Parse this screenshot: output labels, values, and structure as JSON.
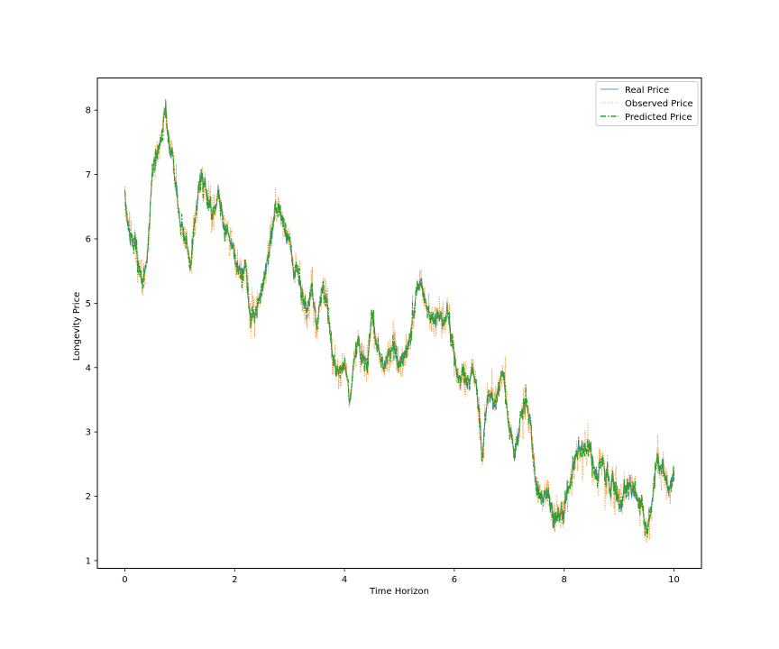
{
  "chart_data": {
    "type": "line",
    "xlabel": "Time Horizon",
    "ylabel": "Longevity Price",
    "xlim": [
      -0.5,
      10.5
    ],
    "ylim": [
      0.88,
      8.5
    ],
    "xticks": [
      0,
      2,
      4,
      6,
      8,
      10
    ],
    "yticks": [
      1,
      2,
      3,
      4,
      5,
      6,
      7,
      8
    ],
    "legend_position": "top-right",
    "grid": false,
    "colors": {
      "real": "#1f77b4",
      "observed": "#ff7f0e",
      "predicted": "#2ca02c"
    },
    "series": [
      {
        "name": "Real Price",
        "key": "real",
        "style": "solid"
      },
      {
        "name": "Observed Price",
        "key": "observed",
        "style": "dotted"
      },
      {
        "name": "Predicted Price",
        "key": "predicted",
        "style": "dashdot"
      }
    ],
    "noise": {
      "real": 0.035,
      "observed": 0.14,
      "predicted": 0.06
    },
    "path_anchors": {
      "x": [
        0,
        0.05,
        0.1,
        0.2,
        0.3,
        0.4,
        0.5,
        0.6,
        0.7,
        0.75,
        0.8,
        0.9,
        1.0,
        1.1,
        1.2,
        1.3,
        1.4,
        1.5,
        1.6,
        1.7,
        1.8,
        1.9,
        2.0,
        2.1,
        2.2,
        2.3,
        2.4,
        2.5,
        2.6,
        2.7,
        2.8,
        2.9,
        3.0,
        3.1,
        3.2,
        3.3,
        3.4,
        3.5,
        3.6,
        3.7,
        3.8,
        3.9,
        4.0,
        4.1,
        4.2,
        4.3,
        4.4,
        4.5,
        4.6,
        4.7,
        4.8,
        4.9,
        5.0,
        5.1,
        5.2,
        5.3,
        5.4,
        5.5,
        5.6,
        5.7,
        5.8,
        5.9,
        6.0,
        6.1,
        6.2,
        6.3,
        6.4,
        6.5,
        6.6,
        6.7,
        6.8,
        6.9,
        7.0,
        7.1,
        7.2,
        7.3,
        7.4,
        7.5,
        7.6,
        7.7,
        7.8,
        7.9,
        8.0,
        8.1,
        8.2,
        8.3,
        8.4,
        8.5,
        8.6,
        8.7,
        8.8,
        8.9,
        9.0,
        9.1,
        9.2,
        9.3,
        9.4,
        9.5,
        9.6,
        9.7,
        9.8,
        9.9,
        10.0
      ],
      "y": [
        6.7,
        6.4,
        6.0,
        5.9,
        5.3,
        5.6,
        7.0,
        7.3,
        7.8,
        8.0,
        7.5,
        7.0,
        6.3,
        6.0,
        5.7,
        6.5,
        7.0,
        6.6,
        6.3,
        6.8,
        6.3,
        6.0,
        5.8,
        5.5,
        5.6,
        4.7,
        4.9,
        5.3,
        5.8,
        6.1,
        6.6,
        6.2,
        5.9,
        5.5,
        5.3,
        5.0,
        5.3,
        4.6,
        5.3,
        4.8,
        4.2,
        4.0,
        4.0,
        3.6,
        4.3,
        4.3,
        3.9,
        4.7,
        4.2,
        4.1,
        4.3,
        4.4,
        4.2,
        4.3,
        4.6,
        5.1,
        5.2,
        4.8,
        4.7,
        5.0,
        4.7,
        4.8,
        4.3,
        3.9,
        3.7,
        4.0,
        3.8,
        2.6,
        3.5,
        3.4,
        3.6,
        3.9,
        3.0,
        2.8,
        3.2,
        3.5,
        3.0,
        2.1,
        2.0,
        2.1,
        1.6,
        1.7,
        1.8,
        2.1,
        2.5,
        2.7,
        2.8,
        2.6,
        2.5,
        2.5,
        2.3,
        2.2,
        1.9,
        2.1,
        2.3,
        2.1,
        1.8,
        1.5,
        2.0,
        2.5,
        2.4,
        2.2,
        2.4
      ]
    }
  },
  "legend": {
    "items": [
      "Real Price",
      "Observed Price",
      "Predicted Price"
    ]
  }
}
